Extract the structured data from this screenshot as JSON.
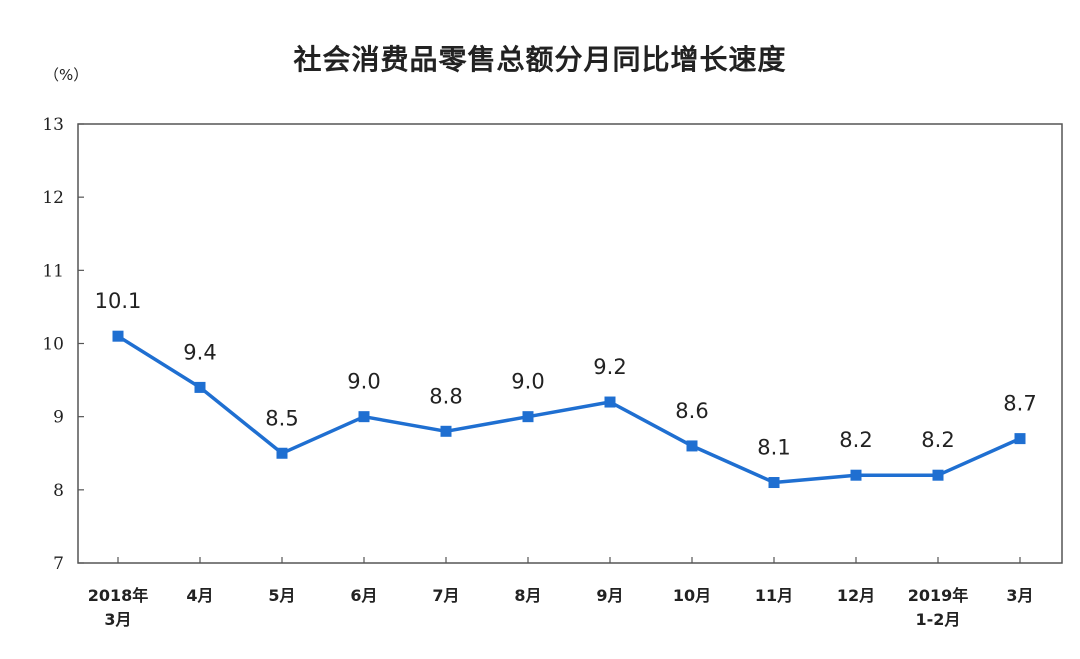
{
  "chart_data": {
    "type": "line",
    "title": "社会消费品零售总额分月同比增长速度",
    "unit": "（%）",
    "categories": [
      [
        "2018年",
        "3月"
      ],
      [
        "4月"
      ],
      [
        "5月"
      ],
      [
        "6月"
      ],
      [
        "7月"
      ],
      [
        "8月"
      ],
      [
        "9月"
      ],
      [
        "10月"
      ],
      [
        "11月"
      ],
      [
        "12月"
      ],
      [
        "2019年",
        "1-2月"
      ],
      [
        "3月"
      ]
    ],
    "values": [
      10.1,
      9.4,
      8.5,
      9.0,
      8.8,
      9.0,
      9.2,
      8.6,
      8.1,
      8.2,
      8.2,
      8.7
    ],
    "data_labels": [
      "10.1",
      "9.4",
      "8.5",
      "9.0",
      "8.8",
      "9.0",
      "9.2",
      "8.6",
      "8.1",
      "8.2",
      "8.2",
      "8.7"
    ],
    "ylim": [
      7,
      13
    ],
    "yticks": [
      "7",
      "8",
      "9",
      "10",
      "11",
      "12",
      "13"
    ],
    "grid": false,
    "color": "#1f6fd1",
    "marker": "square"
  }
}
